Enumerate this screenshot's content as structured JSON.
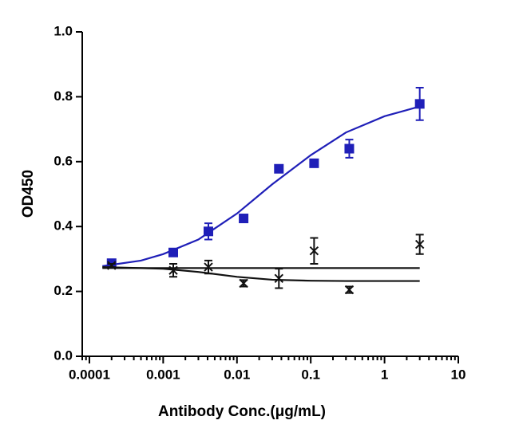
{
  "chart_data": {
    "type": "scatter",
    "xlabel": "Antibody Conc.(μg/mL)",
    "ylabel": "OD450",
    "xscale": "log",
    "xlim": [
      8e-05,
      10
    ],
    "ylim": [
      0,
      1
    ],
    "xticks": [
      0.0001,
      0.001,
      0.01,
      0.1,
      1,
      10
    ],
    "yticks": [
      {
        "value": 0,
        "label": "0.0"
      },
      0.2,
      0.4,
      0.6,
      0.8,
      {
        "value": 1,
        "label": "1.0"
      }
    ],
    "minor_ticks": true,
    "series": [
      {
        "marker": "square",
        "color": "#1f1fb8",
        "x": [
          0.0002,
          0.00137,
          0.0041,
          0.0123,
          0.037,
          0.111,
          0.333,
          3
        ],
        "values": [
          0.287,
          0.32,
          0.385,
          0.425,
          0.578,
          0.595,
          0.64,
          0.778
        ],
        "errors": [
          0.005,
          0.005,
          0.025,
          0.005,
          0.005,
          0.008,
          0.028,
          0.05
        ],
        "fit": {
          "x": [
            0.00015,
            0.0005,
            0.001,
            0.003,
            0.01,
            0.03,
            0.1,
            0.3,
            1,
            3
          ],
          "values": [
            0.278,
            0.295,
            0.315,
            0.36,
            0.44,
            0.53,
            0.62,
            0.69,
            0.74,
            0.77
          ]
        }
      },
      {
        "marker": "cross",
        "color": "#111111",
        "x": [
          0.0002,
          0.00137,
          0.0041,
          0.0123,
          0.037,
          0.111,
          0.333,
          3
        ],
        "values": [
          0.28,
          0.265,
          0.275,
          0.225,
          0.24,
          0.325,
          0.205,
          0.345
        ],
        "errors": [
          0.005,
          0.02,
          0.02,
          0.01,
          0.03,
          0.04,
          0.01,
          0.03
        ],
        "fit": {
          "x": [
            0.00015,
            0.001,
            0.003,
            0.01,
            0.03,
            0.1,
            0.3,
            3
          ],
          "values": [
            0.275,
            0.27,
            0.26,
            0.245,
            0.236,
            0.233,
            0.232,
            0.232
          ]
        }
      }
    ],
    "extra_lines": [
      {
        "color": "#111111",
        "x": [
          0.00015,
          3
        ],
        "values": [
          0.272,
          0.272
        ]
      }
    ]
  }
}
